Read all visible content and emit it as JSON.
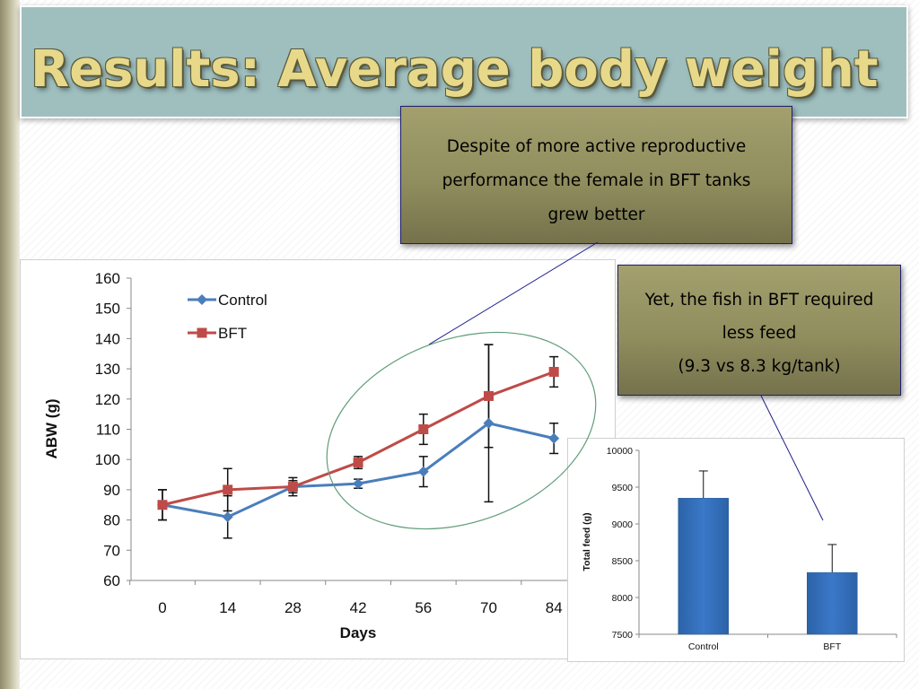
{
  "slide": {
    "title": "Results: Average body weight",
    "callouts": [
      {
        "lines": [
          "Despite of more active reproductive",
          "performance the female in BFT tanks",
          "grew better"
        ]
      },
      {
        "lines": [
          "Yet, the fish in BFT required",
          "less feed",
          "(9.3 vs 8.3 kg/tank)"
        ]
      }
    ]
  },
  "colors": {
    "title_text": "#e8d98a",
    "title_bar": "#9fbfbf",
    "callout_fill": "#908d5e",
    "control": "#4a7ebb",
    "bft": "#be4b48",
    "bar_fill": "#3a78c8",
    "ellipse": "#5f9e7a",
    "connector": "#1e1e8c"
  },
  "chart_data": [
    {
      "type": "line",
      "title": "",
      "xlabel": "Days",
      "ylabel": "ABW (g)",
      "x": [
        0,
        14,
        28,
        42,
        56,
        70,
        84
      ],
      "ylim": [
        60,
        160
      ],
      "yticks": [
        60,
        70,
        80,
        90,
        100,
        110,
        120,
        130,
        140,
        150,
        160
      ],
      "grid": false,
      "legend": "top-left",
      "series": [
        {
          "name": "Control",
          "color": "#4a7ebb",
          "marker": "diamond",
          "values": [
            85,
            81,
            91,
            92,
            96,
            112,
            107
          ],
          "errors": [
            5,
            7,
            2,
            1.5,
            5,
            26,
            5
          ]
        },
        {
          "name": "BFT",
          "color": "#be4b48",
          "marker": "square",
          "values": [
            85,
            90,
            91,
            99,
            110,
            121,
            129
          ],
          "errors": [
            5,
            7,
            3,
            2,
            5,
            17,
            5
          ]
        }
      ]
    },
    {
      "type": "bar",
      "title": "",
      "xlabel": "",
      "ylabel": "Total feed (g)",
      "categories": [
        "Control",
        "BFT"
      ],
      "values": [
        9350,
        8340
      ],
      "errors": [
        370,
        380
      ],
      "ylim": [
        7500,
        10000
      ],
      "yticks": [
        7500,
        8000,
        8500,
        9000,
        9500,
        10000
      ],
      "grid": false
    }
  ]
}
